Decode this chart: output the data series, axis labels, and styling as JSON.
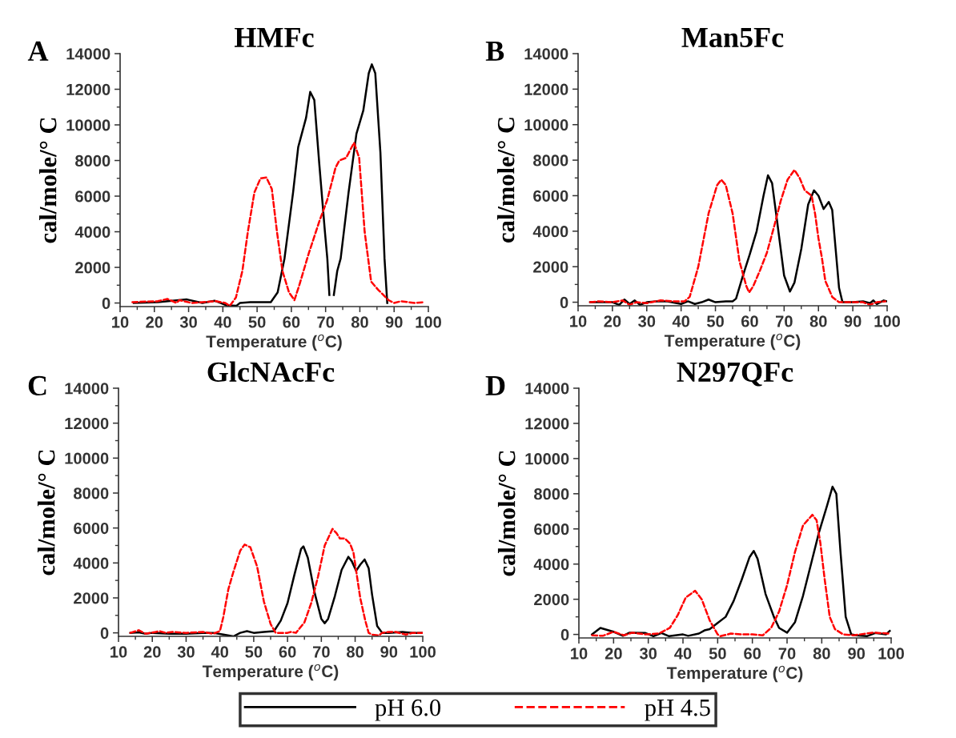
{
  "chart_data": [
    {
      "type": "line",
      "title": "HMFc",
      "annotations": [
        "A"
      ],
      "xlabel": "Temperature ($^{o}$C)",
      "ylabel": "cal/mole/° C",
      "xlim": [
        10,
        100
      ],
      "ylim": [
        -200,
        14000
      ],
      "xticks": [
        10,
        20,
        30,
        40,
        50,
        60,
        70,
        80,
        90,
        100
      ],
      "yticks": [
        0,
        2000,
        4000,
        6000,
        8000,
        10000,
        12000,
        14000
      ],
      "grid": false,
      "legend": "bottom",
      "series": [
        {
          "name": "pH 6.0",
          "color": "#000000",
          "line_style": "solid",
          "x": [
            14,
            21,
            29.5,
            34,
            37.6,
            41,
            44,
            45,
            48,
            54,
            56,
            58,
            60.5,
            62,
            64.3,
            65.5,
            66.7,
            68.2,
            69.8,
            70.5,
            71.1,
            71.8,
            72.4,
            73.4,
            74.4,
            76.7,
            79,
            81,
            82.6,
            83.5,
            84.5,
            86,
            87.2,
            88
          ],
          "values": [
            0,
            50,
            200,
            0,
            130,
            -130,
            -150,
            0,
            50,
            50,
            600,
            2500,
            6200,
            8750,
            10400,
            11850,
            11400,
            7700,
            4000,
            2500,
            450,
            null,
            450,
            1800,
            2500,
            6200,
            9500,
            10800,
            12900,
            13400,
            12900,
            8450,
            2500,
            0
          ]
        },
        {
          "name": "pH 4.5",
          "color": "#ff0000",
          "line_style": "dashed",
          "x": [
            13.6,
            21,
            23.8,
            26.5,
            27.3,
            31,
            38,
            40.7,
            42,
            43.8,
            45.7,
            47.3,
            49.2,
            51,
            52.7,
            54.3,
            55.8,
            57.4,
            59.3,
            60.9,
            62.4,
            65.1,
            68.2,
            70.5,
            72.9,
            74,
            76,
            78.3,
            79.8,
            81.4,
            83.3,
            85.3,
            88.4,
            90,
            92,
            96,
            99
          ],
          "values": [
            50,
            100,
            230,
            0,
            160,
            0,
            100,
            0,
            -160,
            300,
            1800,
            4000,
            6200,
            7000,
            7050,
            6400,
            4000,
            1800,
            600,
            160,
            1050,
            2800,
            4600,
            5800,
            7600,
            8000,
            8150,
            9000,
            8150,
            4000,
            1200,
            750,
            160,
            0,
            100,
            0,
            50
          ]
        }
      ]
    },
    {
      "type": "line",
      "title": "Man5Fc",
      "annotations": [
        "B"
      ],
      "xlabel": "Temperature ($^{o}$C)",
      "ylabel": "cal/mole/° C",
      "xlim": [
        10,
        100
      ],
      "ylim": [
        -200,
        14000
      ],
      "xticks": [
        10,
        20,
        30,
        40,
        50,
        60,
        70,
        80,
        90,
        100
      ],
      "yticks": [
        0,
        2000,
        4000,
        6000,
        8000,
        10000,
        12000,
        14000
      ],
      "grid": false,
      "series": [
        {
          "name": "pH 6.0",
          "color": "#000000",
          "line_style": "solid",
          "x": [
            13.5,
            20,
            22,
            23.5,
            25,
            26.5,
            28,
            30,
            33,
            36,
            40,
            42,
            44,
            46,
            48,
            50,
            53,
            55,
            56,
            58,
            60,
            62,
            64,
            65.3,
            66.5,
            68,
            70,
            71.7,
            73,
            75,
            77,
            78.7,
            80,
            81.5,
            83,
            84,
            85,
            86,
            87,
            90,
            93,
            95,
            96,
            97,
            99,
            100
          ],
          "values": [
            0,
            0,
            -150,
            150,
            -100,
            100,
            -150,
            0,
            50,
            50,
            -100,
            50,
            -100,
            0,
            150,
            0,
            50,
            50,
            200,
            1500,
            2700,
            4000,
            6000,
            7150,
            6700,
            4500,
            1500,
            600,
            1100,
            3000,
            5500,
            6300,
            6000,
            5250,
            5650,
            5200,
            3000,
            800,
            0,
            0,
            50,
            -50,
            100,
            -100,
            100,
            50
          ]
        },
        {
          "name": "pH 4.5",
          "color": "#ff0000",
          "line_style": "dashed",
          "x": [
            13.5,
            16,
            20,
            23,
            25,
            27,
            30,
            34,
            38,
            41,
            42.5,
            45,
            48,
            50.5,
            51.7,
            53,
            55,
            57,
            59,
            59.8,
            61,
            63,
            65,
            67,
            69,
            71,
            73,
            74.5,
            76,
            78,
            79,
            80,
            81,
            82,
            84,
            86,
            90,
            93,
            95,
            97,
            99.5
          ],
          "values": [
            0,
            50,
            0,
            100,
            -150,
            0,
            -50,
            100,
            50,
            50,
            300,
            2000,
            5000,
            6600,
            6900,
            6600,
            5000,
            2300,
            900,
            550,
            900,
            1800,
            2800,
            4200,
            5700,
            6900,
            7450,
            7000,
            6300,
            6000,
            5000,
            3600,
            2500,
            1200,
            300,
            0,
            0,
            0,
            -150,
            0,
            50
          ]
        }
      ]
    },
    {
      "type": "line",
      "title": "GlcNAcFc",
      "annotations": [
        "C"
      ],
      "xlabel": "Temperature ($^{o}$C)",
      "ylabel": "cal/mole/° C",
      "xlim": [
        10,
        100
      ],
      "ylim": [
        -200,
        14000
      ],
      "xticks": [
        10,
        20,
        30,
        40,
        50,
        60,
        70,
        80,
        90,
        100
      ],
      "yticks": [
        0,
        2000,
        4000,
        6000,
        8000,
        10000,
        12000,
        14000
      ],
      "grid": false,
      "series": [
        {
          "name": "pH 6.0",
          "color": "#000000",
          "line_style": "solid",
          "x": [
            13.5,
            16,
            18,
            20,
            25,
            30,
            35,
            38,
            41,
            44,
            46,
            48,
            50,
            53,
            56,
            58,
            60,
            62,
            64,
            64.7,
            66,
            68,
            70,
            71,
            72,
            74,
            76,
            78,
            79,
            80.3,
            81.5,
            82.8,
            84,
            85,
            86.5,
            88,
            90,
            94,
            97,
            100
          ],
          "values": [
            0,
            30,
            -50,
            0,
            -50,
            -50,
            0,
            0,
            -100,
            -200,
            0,
            100,
            0,
            50,
            100,
            700,
            1700,
            3300,
            4800,
            4950,
            4300,
            2300,
            800,
            550,
            800,
            2100,
            3600,
            4350,
            4100,
            3550,
            3900,
            4200,
            3700,
            2200,
            400,
            0,
            0,
            50,
            0,
            0
          ]
        },
        {
          "name": "pH 4.5",
          "color": "#ff0000",
          "line_style": "dashed",
          "x": [
            13.5,
            16,
            18,
            21,
            22,
            24,
            26,
            30,
            35,
            38,
            40,
            41,
            42.5,
            44,
            46,
            47.3,
            49,
            51,
            53,
            55,
            56.5,
            60,
            61,
            62.5,
            65,
            67,
            69,
            71,
            73.3,
            74.5,
            75.5,
            77,
            78.5,
            79.5,
            80.5,
            81.5,
            83,
            84,
            85,
            87,
            88,
            90,
            92,
            95,
            97,
            100
          ],
          "values": [
            0,
            150,
            -50,
            50,
            100,
            0,
            50,
            0,
            50,
            -50,
            100,
            900,
            2500,
            3500,
            4700,
            5050,
            4900,
            3800,
            1800,
            500,
            0,
            0,
            50,
            0,
            600,
            1700,
            3200,
            5000,
            5950,
            5700,
            5400,
            5400,
            5100,
            4600,
            3300,
            2000,
            700,
            0,
            -100,
            -150,
            0,
            50,
            50,
            -100,
            0,
            0
          ]
        }
      ]
    },
    {
      "type": "line",
      "title": "N297QFc",
      "annotations": [
        "D"
      ],
      "xlabel": "Temperature ($^{o}$C)",
      "ylabel": "cal/mole/° C",
      "xlim": [
        10,
        100
      ],
      "ylim": [
        -200,
        14000
      ],
      "xticks": [
        10,
        20,
        30,
        40,
        50,
        60,
        70,
        80,
        90,
        100
      ],
      "yticks": [
        0,
        2000,
        4000,
        6000,
        8000,
        10000,
        12000,
        14000
      ],
      "grid": false,
      "series": [
        {
          "name": "pH 6.0",
          "color": "#000000",
          "line_style": "solid",
          "x": [
            13.8,
            16.2,
            20,
            22.7,
            24.6,
            29.2,
            31.5,
            33.8,
            36,
            40,
            41.5,
            44.6,
            46.2,
            47.7,
            50,
            52.3,
            54.6,
            56.9,
            59.2,
            60.4,
            61.5,
            63.8,
            66.2,
            67.7,
            70,
            72.3,
            74.6,
            76.9,
            79.2,
            81.5,
            83.1,
            84.2,
            85.4,
            86.9,
            88.5,
            90,
            93,
            95.4,
            98.5,
            99.6
          ],
          "values": [
            0,
            370,
            150,
            -80,
            100,
            80,
            -100,
            80,
            -100,
            0,
            -80,
            50,
            230,
            300,
            650,
            1000,
            1900,
            3100,
            4400,
            4750,
            4300,
            2300,
            1000,
            370,
            100,
            700,
            2200,
            4000,
            5800,
            7300,
            8400,
            8000,
            4700,
            1000,
            0,
            -50,
            -100,
            80,
            0,
            200
          ]
        },
        {
          "name": "pH 4.5",
          "color": "#ff0000",
          "line_style": "dashed",
          "x": [
            13.8,
            16.9,
            20,
            23,
            25.4,
            29.2,
            33,
            36.2,
            38.5,
            40.8,
            43.5,
            45.4,
            47.7,
            50,
            50.8,
            53.8,
            56.9,
            60,
            63,
            65.4,
            67.7,
            70,
            72.3,
            74.6,
            77.3,
            78.5,
            79.6,
            80.8,
            82.3,
            83.8,
            86.2,
            89.2,
            94.6,
            99.8
          ],
          "values": [
            -50,
            -80,
            150,
            -50,
            100,
            0,
            50,
            370,
            1100,
            2100,
            2480,
            2000,
            800,
            0,
            -100,
            50,
            0,
            0,
            -50,
            370,
            1300,
            2800,
            4700,
            6200,
            6800,
            6500,
            5200,
            3200,
            1000,
            300,
            0,
            -50,
            100,
            50
          ]
        }
      ]
    }
  ]
}
